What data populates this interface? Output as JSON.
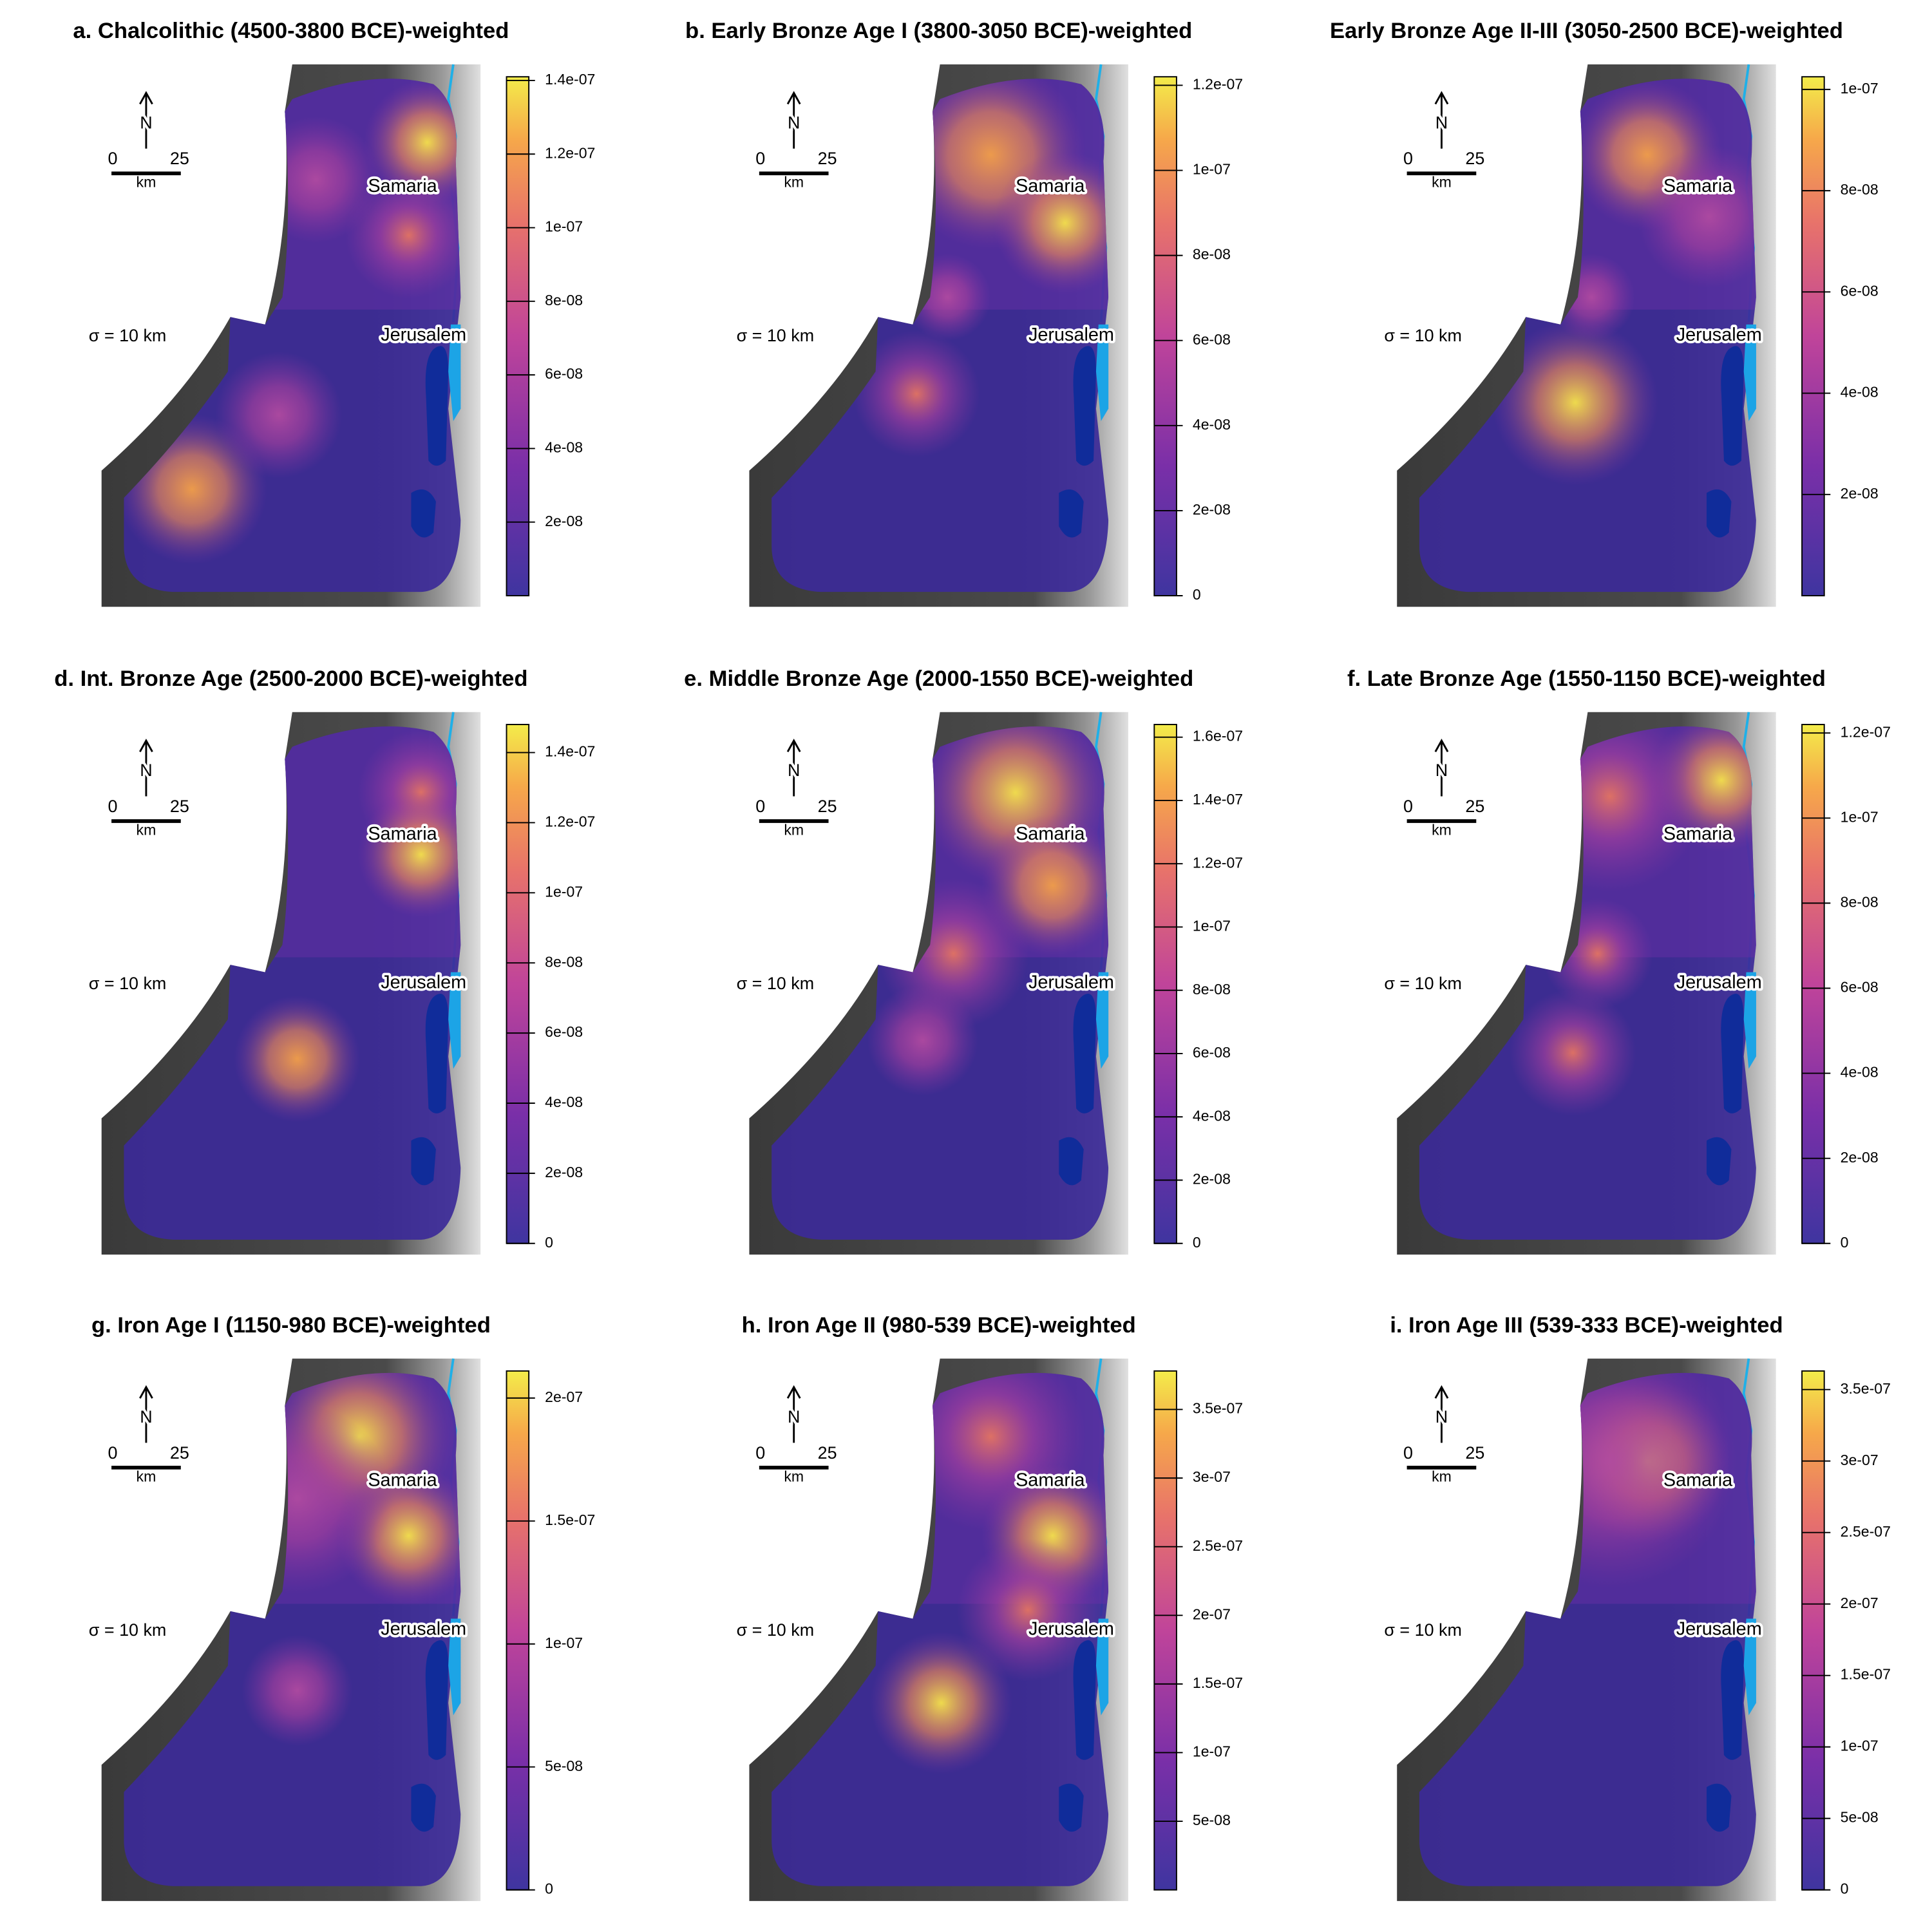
{
  "panels": [
    {
      "title": "a. Chalcolithic (4500-3800 BCE)-weighted",
      "sigma": "σ = 10 km",
      "places": [
        "Samaria",
        "Jerusalem"
      ],
      "north": "N",
      "scale": {
        "start": 0,
        "end": 25,
        "unit": "km"
      },
      "colorbar": {
        "lim": [
          0,
          1.41e-07
        ],
        "ticks": [
          {
            "value": 2e-08,
            "label": "2e-08"
          },
          {
            "value": 4e-08,
            "label": "4e-08"
          },
          {
            "value": 6e-08,
            "label": "6e-08"
          },
          {
            "value": 8e-08,
            "label": "8e-08"
          },
          {
            "value": 1e-07,
            "label": "1e-07"
          },
          {
            "value": 1.2e-07,
            "label": "1.2e-07"
          },
          {
            "value": 1.4e-07,
            "label": "1.4e-07"
          }
        ]
      }
    },
    {
      "title": "b. Early Bronze Age I (3800-3050 BCE)-weighted",
      "sigma": "σ = 10 km",
      "places": [
        "Samaria",
        "Jerusalem"
      ],
      "north": "N",
      "scale": {
        "start": 0,
        "end": 25,
        "unit": "km"
      },
      "colorbar": {
        "lim": [
          0,
          1.22e-07
        ],
        "ticks": [
          0,
          {
            "value": 2e-08,
            "label": "2e-08"
          },
          {
            "value": 4e-08,
            "label": "4e-08"
          },
          {
            "value": 6e-08,
            "label": "6e-08"
          },
          {
            "value": 8e-08,
            "label": "8e-08"
          },
          {
            "value": 1e-07,
            "label": "1e-07"
          },
          {
            "value": 1.2e-07,
            "label": "1.2e-07"
          }
        ]
      }
    },
    {
      "title": "Early Bronze Age II-III (3050-2500 BCE)-weighted",
      "sigma": "σ = 10 km",
      "places": [
        "Samaria",
        "Jerusalem"
      ],
      "north": "N",
      "scale": {
        "start": 0,
        "end": 25,
        "unit": "km"
      },
      "colorbar": {
        "lim": [
          0,
          1.025e-07
        ],
        "ticks": [
          {
            "value": 2e-08,
            "label": "2e-08"
          },
          {
            "value": 4e-08,
            "label": "4e-08"
          },
          {
            "value": 6e-08,
            "label": "6e-08"
          },
          {
            "value": 8e-08,
            "label": "8e-08"
          },
          {
            "value": 1e-07,
            "label": "1e-07"
          }
        ]
      }
    },
    {
      "title": "d. Int. Bronze Age (2500-2000 BCE)-weighted",
      "sigma": "σ = 10 km",
      "places": [
        "Samaria",
        "Jerusalem"
      ],
      "north": "N",
      "scale": {
        "start": 0,
        "end": 25,
        "unit": "km"
      },
      "colorbar": {
        "lim": [
          0,
          1.48e-07
        ],
        "ticks": [
          0,
          {
            "value": 2e-08,
            "label": "2e-08"
          },
          {
            "value": 4e-08,
            "label": "4e-08"
          },
          {
            "value": 6e-08,
            "label": "6e-08"
          },
          {
            "value": 8e-08,
            "label": "8e-08"
          },
          {
            "value": 1e-07,
            "label": "1e-07"
          },
          {
            "value": 1.2e-07,
            "label": "1.2e-07"
          },
          {
            "value": 1.4e-07,
            "label": "1.4e-07"
          }
        ]
      }
    },
    {
      "title": "e. Middle Bronze Age (2000-1550 BCE)-weighted",
      "sigma": "σ = 10 km",
      "places": [
        "Samaria",
        "Jerusalem"
      ],
      "north": "N",
      "scale": {
        "start": 0,
        "end": 25,
        "unit": "km"
      },
      "colorbar": {
        "lim": [
          0,
          1.64e-07
        ],
        "ticks": [
          0,
          {
            "value": 2e-08,
            "label": "2e-08"
          },
          {
            "value": 4e-08,
            "label": "4e-08"
          },
          {
            "value": 6e-08,
            "label": "6e-08"
          },
          {
            "value": 8e-08,
            "label": "8e-08"
          },
          {
            "value": 1e-07,
            "label": "1e-07"
          },
          {
            "value": 1.2e-07,
            "label": "1.2e-07"
          },
          {
            "value": 1.4e-07,
            "label": "1.4e-07"
          },
          {
            "value": 1.6e-07,
            "label": "1.6e-07"
          }
        ]
      }
    },
    {
      "title": "f. Late Bronze Age (1550-1150 BCE)-weighted",
      "sigma": "σ = 10 km",
      "places": [
        "Samaria",
        "Jerusalem"
      ],
      "north": "N",
      "scale": {
        "start": 0,
        "end": 25,
        "unit": "km"
      },
      "colorbar": {
        "lim": [
          0,
          1.22e-07
        ],
        "ticks": [
          0,
          {
            "value": 2e-08,
            "label": "2e-08"
          },
          {
            "value": 4e-08,
            "label": "4e-08"
          },
          {
            "value": 6e-08,
            "label": "6e-08"
          },
          {
            "value": 8e-08,
            "label": "8e-08"
          },
          {
            "value": 1e-07,
            "label": "1e-07"
          },
          {
            "value": 1.2e-07,
            "label": "1.2e-07"
          }
        ]
      }
    },
    {
      "title": "g. Iron Age I (1150-980 BCE)-weighted",
      "sigma": "σ = 10 km",
      "places": [
        "Samaria",
        "Jerusalem"
      ],
      "north": "N",
      "scale": {
        "start": 0,
        "end": 25,
        "unit": "km"
      },
      "colorbar": {
        "lim": [
          0,
          2.11e-07
        ],
        "ticks": [
          0,
          {
            "value": 5e-08,
            "label": "5e-08"
          },
          {
            "value": 1e-07,
            "label": "1e-07"
          },
          {
            "value": 1.5e-07,
            "label": "1.5e-07"
          },
          {
            "value": 2e-07,
            "label": "2e-07"
          }
        ]
      }
    },
    {
      "title": "h. Iron Age II (980-539 BCE)-weighted",
      "sigma": "σ = 10 km",
      "places": [
        "Samaria",
        "Jerusalem"
      ],
      "north": "N",
      "scale": {
        "start": 0,
        "end": 25,
        "unit": "km"
      },
      "colorbar": {
        "lim": [
          0,
          3.78e-07
        ],
        "ticks": [
          {
            "value": 5e-08,
            "label": "5e-08"
          },
          {
            "value": 1e-07,
            "label": "1e-07"
          },
          {
            "value": 1.5e-07,
            "label": "1.5e-07"
          },
          {
            "value": 2e-07,
            "label": "2e-07"
          },
          {
            "value": 2.5e-07,
            "label": "2.5e-07"
          },
          {
            "value": 3e-07,
            "label": "3e-07"
          },
          {
            "value": 3.5e-07,
            "label": "3.5e-07"
          }
        ]
      }
    },
    {
      "title": "i. Iron Age III (539-333 BCE)-weighted",
      "sigma": "σ = 10 km",
      "places": [
        "Samaria",
        "Jerusalem"
      ],
      "north": "N",
      "scale": {
        "start": 0,
        "end": 25,
        "unit": "km"
      },
      "colorbar": {
        "lim": [
          0,
          3.63e-07
        ],
        "ticks": [
          0,
          {
            "value": 5e-08,
            "label": "5e-08"
          },
          {
            "value": 1e-07,
            "label": "1e-07"
          },
          {
            "value": 1.5e-07,
            "label": "1.5e-07"
          },
          {
            "value": 2e-07,
            "label": "2e-07"
          },
          {
            "value": 2.5e-07,
            "label": "2.5e-07"
          },
          {
            "value": 3e-07,
            "label": "3e-07"
          },
          {
            "value": 3.5e-07,
            "label": "3.5e-07"
          }
        ]
      }
    }
  ]
}
